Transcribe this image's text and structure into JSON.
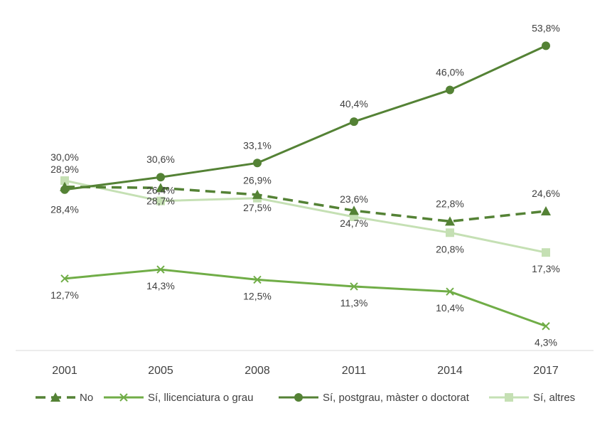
{
  "chart_data": {
    "type": "line",
    "categories": [
      "2001",
      "2005",
      "2008",
      "2011",
      "2014",
      "2017"
    ],
    "ylim": [
      0,
      60
    ],
    "grid": false,
    "legend_position": "bottom",
    "series": [
      {
        "name": "No",
        "values": [
          28.9,
          28.7,
          27.5,
          24.7,
          22.8,
          24.6
        ],
        "labels": [
          "28,9%",
          "28,7%",
          "27,5%",
          "24,7%",
          "22,8%",
          "24,6%"
        ],
        "color": "#548235",
        "marker": "triangle",
        "dash": true
      },
      {
        "name": "Sí,  llicenciatura o grau",
        "values": [
          12.7,
          14.3,
          12.5,
          11.3,
          10.4,
          4.3
        ],
        "labels": [
          "12,7%",
          "14,3%",
          "12,5%",
          "11,3%",
          "10,4%",
          "4,3%"
        ],
        "color": "#70AD47",
        "marker": "x",
        "dash": false
      },
      {
        "name": "Sí, postgrau, màster o doctorat",
        "values": [
          28.4,
          30.6,
          33.1,
          40.4,
          46.0,
          53.8
        ],
        "labels": [
          "28,4%",
          "30,6%",
          "33,1%",
          "40,4%",
          "46,0%",
          "53,8%"
        ],
        "color": "#548235",
        "marker": "circle",
        "dash": false
      },
      {
        "name": "Sí, altres",
        "values": [
          30.0,
          26.4,
          26.9,
          23.6,
          20.8,
          17.3
        ],
        "labels": [
          "30,0%",
          "26,4%",
          "26,9%",
          "23,6%",
          "20,8%",
          "17,3%"
        ],
        "color": "#C5E0B4",
        "marker": "square",
        "dash": false
      }
    ]
  }
}
